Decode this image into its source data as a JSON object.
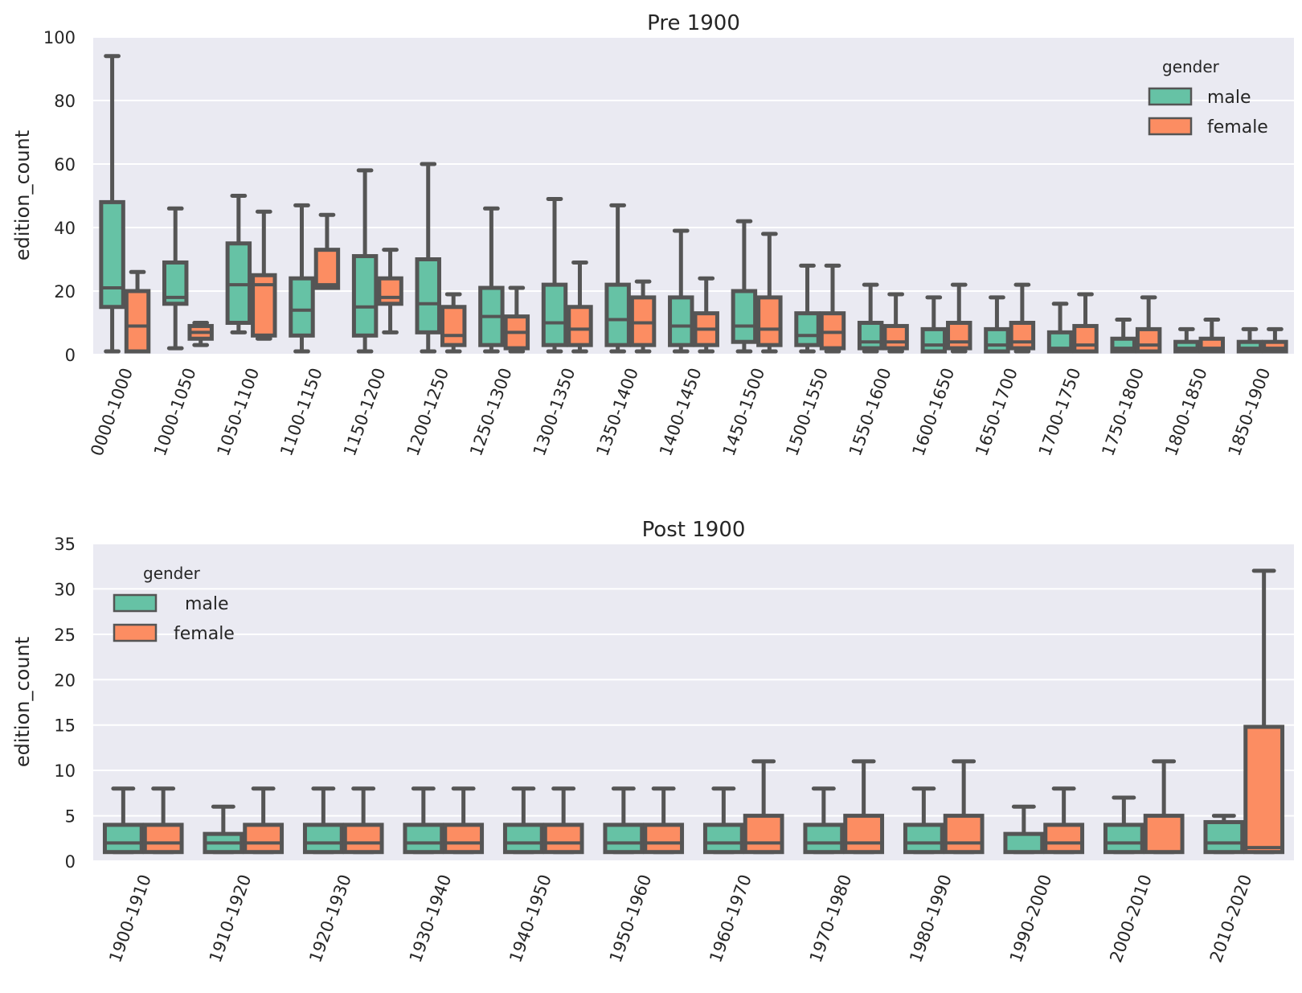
{
  "chart_data": [
    {
      "type": "box",
      "title": "Pre 1900",
      "ylabel": "edition_count",
      "ylim": [
        0,
        100
      ],
      "yticks": [
        0,
        20,
        40,
        60,
        80,
        100
      ],
      "legend": {
        "title": "gender",
        "placement": "top-right"
      },
      "series_names": [
        "male",
        "female"
      ],
      "categories": [
        "0000-1000",
        "1000-1050",
        "1050-1100",
        "1100-1150",
        "1150-1200",
        "1200-1250",
        "1250-1300",
        "1300-1350",
        "1350-1400",
        "1400-1450",
        "1450-1500",
        "1500-1550",
        "1550-1600",
        "1600-1650",
        "1650-1700",
        "1700-1750",
        "1750-1800",
        "1800-1850",
        "1850-1900"
      ],
      "male": [
        {
          "wlo": 1,
          "q1": 15,
          "med": 21,
          "q3": 48,
          "whi": 94
        },
        {
          "wlo": 2,
          "q1": 16,
          "med": 18,
          "q3": 29,
          "whi": 46
        },
        {
          "wlo": 7,
          "q1": 10,
          "med": 22,
          "q3": 35,
          "whi": 50
        },
        {
          "wlo": 1,
          "q1": 6,
          "med": 14,
          "q3": 24,
          "whi": 47
        },
        {
          "wlo": 1,
          "q1": 6,
          "med": 15,
          "q3": 31,
          "whi": 58
        },
        {
          "wlo": 1,
          "q1": 7,
          "med": 16,
          "q3": 30,
          "whi": 60
        },
        {
          "wlo": 1,
          "q1": 3,
          "med": 12,
          "q3": 21,
          "whi": 46
        },
        {
          "wlo": 1,
          "q1": 3,
          "med": 10,
          "q3": 22,
          "whi": 49
        },
        {
          "wlo": 1,
          "q1": 3,
          "med": 11,
          "q3": 22,
          "whi": 47
        },
        {
          "wlo": 1,
          "q1": 3,
          "med": 9,
          "q3": 18,
          "whi": 39
        },
        {
          "wlo": 1,
          "q1": 4,
          "med": 9,
          "q3": 20,
          "whi": 42
        },
        {
          "wlo": 1,
          "q1": 3,
          "med": 6,
          "q3": 13,
          "whi": 28
        },
        {
          "wlo": 1,
          "q1": 2,
          "med": 4,
          "q3": 10,
          "whi": 22
        },
        {
          "wlo": 1,
          "q1": 1,
          "med": 3,
          "q3": 8,
          "whi": 18
        },
        {
          "wlo": 1,
          "q1": 1,
          "med": 3,
          "q3": 8,
          "whi": 18
        },
        {
          "wlo": 1,
          "q1": 1,
          "med": 2,
          "q3": 7,
          "whi": 16
        },
        {
          "wlo": 1,
          "q1": 1,
          "med": 2,
          "q3": 5,
          "whi": 11
        },
        {
          "wlo": 1,
          "q1": 1,
          "med": 2,
          "q3": 4,
          "whi": 8
        },
        {
          "wlo": 1,
          "q1": 1,
          "med": 2,
          "q3": 4,
          "whi": 8
        }
      ],
      "female": [
        {
          "wlo": 1,
          "q1": 1,
          "med": 9,
          "q3": 20,
          "whi": 26
        },
        {
          "wlo": 3,
          "q1": 5,
          "med": 7,
          "q3": 9,
          "whi": 10
        },
        {
          "wlo": 5,
          "q1": 6,
          "med": 22,
          "q3": 25,
          "whi": 45
        },
        {
          "wlo": 21,
          "q1": 21,
          "med": 22,
          "q3": 33,
          "whi": 44
        },
        {
          "wlo": 7,
          "q1": 16,
          "med": 18,
          "q3": 24,
          "whi": 33
        },
        {
          "wlo": 1,
          "q1": 3,
          "med": 6,
          "q3": 15,
          "whi": 19
        },
        {
          "wlo": 1,
          "q1": 2,
          "med": 7,
          "q3": 12,
          "whi": 21
        },
        {
          "wlo": 1,
          "q1": 3,
          "med": 8,
          "q3": 15,
          "whi": 29
        },
        {
          "wlo": 1,
          "q1": 3,
          "med": 10,
          "q3": 18,
          "whi": 23
        },
        {
          "wlo": 1,
          "q1": 3,
          "med": 8,
          "q3": 13,
          "whi": 24
        },
        {
          "wlo": 1,
          "q1": 3,
          "med": 8,
          "q3": 18,
          "whi": 38
        },
        {
          "wlo": 1,
          "q1": 2,
          "med": 7,
          "q3": 13,
          "whi": 28
        },
        {
          "wlo": 1,
          "q1": 2,
          "med": 4,
          "q3": 9,
          "whi": 19
        },
        {
          "wlo": 1,
          "q1": 2,
          "med": 4,
          "q3": 10,
          "whi": 22
        },
        {
          "wlo": 1,
          "q1": 2,
          "med": 4,
          "q3": 10,
          "whi": 22
        },
        {
          "wlo": 1,
          "q1": 1,
          "med": 3,
          "q3": 9,
          "whi": 19
        },
        {
          "wlo": 1,
          "q1": 1,
          "med": 3,
          "q3": 8,
          "whi": 18
        },
        {
          "wlo": 1,
          "q1": 1,
          "med": 2,
          "q3": 5,
          "whi": 11
        },
        {
          "wlo": 1,
          "q1": 1,
          "med": 2,
          "q3": 4,
          "whi": 8
        }
      ]
    },
    {
      "type": "box",
      "title": "Post 1900",
      "ylabel": "edition_count",
      "ylim": [
        0,
        35
      ],
      "yticks": [
        0,
        5,
        10,
        15,
        20,
        25,
        30,
        35
      ],
      "legend": {
        "title": "gender",
        "placement": "top-left"
      },
      "series_names": [
        "male",
        "female"
      ],
      "categories": [
        "1900-1910",
        "1910-1920",
        "1920-1930",
        "1930-1940",
        "1940-1950",
        "1950-1960",
        "1960-1970",
        "1970-1980",
        "1980-1990",
        "1990-2000",
        "2000-2010",
        "2010-2020"
      ],
      "male": [
        {
          "wlo": 1,
          "q1": 1,
          "med": 2,
          "q3": 4,
          "whi": 8
        },
        {
          "wlo": 1,
          "q1": 1,
          "med": 2,
          "q3": 3,
          "whi": 6
        },
        {
          "wlo": 1,
          "q1": 1,
          "med": 2,
          "q3": 4,
          "whi": 8
        },
        {
          "wlo": 1,
          "q1": 1,
          "med": 2,
          "q3": 4,
          "whi": 8
        },
        {
          "wlo": 1,
          "q1": 1,
          "med": 2,
          "q3": 4,
          "whi": 8
        },
        {
          "wlo": 1,
          "q1": 1,
          "med": 2,
          "q3": 4,
          "whi": 8
        },
        {
          "wlo": 1,
          "q1": 1,
          "med": 2,
          "q3": 4,
          "whi": 8
        },
        {
          "wlo": 1,
          "q1": 1,
          "med": 2,
          "q3": 4,
          "whi": 8
        },
        {
          "wlo": 1,
          "q1": 1,
          "med": 2,
          "q3": 4,
          "whi": 8
        },
        {
          "wlo": 1,
          "q1": 1,
          "med": 1,
          "q3": 3,
          "whi": 6
        },
        {
          "wlo": 1,
          "q1": 1,
          "med": 2,
          "q3": 4,
          "whi": 7
        },
        {
          "wlo": 1,
          "q1": 1,
          "med": 2,
          "q3": 4.3,
          "whi": 5
        }
      ],
      "female": [
        {
          "wlo": 1,
          "q1": 1,
          "med": 2,
          "q3": 4,
          "whi": 8
        },
        {
          "wlo": 1,
          "q1": 1,
          "med": 2,
          "q3": 4,
          "whi": 8
        },
        {
          "wlo": 1,
          "q1": 1,
          "med": 2,
          "q3": 4,
          "whi": 8
        },
        {
          "wlo": 1,
          "q1": 1,
          "med": 2,
          "q3": 4,
          "whi": 8
        },
        {
          "wlo": 1,
          "q1": 1,
          "med": 2,
          "q3": 4,
          "whi": 8
        },
        {
          "wlo": 1,
          "q1": 1,
          "med": 2,
          "q3": 4,
          "whi": 8
        },
        {
          "wlo": 1,
          "q1": 1,
          "med": 2,
          "q3": 5,
          "whi": 11
        },
        {
          "wlo": 1,
          "q1": 1,
          "med": 2,
          "q3": 5,
          "whi": 11
        },
        {
          "wlo": 1,
          "q1": 1,
          "med": 2,
          "q3": 5,
          "whi": 11
        },
        {
          "wlo": 1,
          "q1": 1,
          "med": 2,
          "q3": 4,
          "whi": 8
        },
        {
          "wlo": 1,
          "q1": 1,
          "med": 1,
          "q3": 5,
          "whi": 11
        },
        {
          "wlo": 1,
          "q1": 1,
          "med": 1.5,
          "q3": 14.8,
          "whi": 32
        }
      ]
    }
  ],
  "colors": {
    "male": "#66c2a5",
    "female": "#fc8d62",
    "line": "#555555",
    "background": "#eaeaf2",
    "grid": "#ffffff"
  }
}
